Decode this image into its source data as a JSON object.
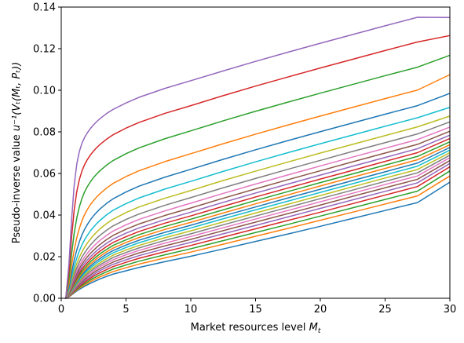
{
  "chart_data": {
    "type": "line",
    "title": "",
    "xlabel": "Market resources level",
    "xlabel_symbol": "M",
    "xlabel_subscript": "t",
    "ylabel": "Pseudo-inverse value",
    "ylabel_formula": "u⁻¹(Vₜ(Mₜ, Pₜ))",
    "xlim": [
      0,
      30
    ],
    "ylim": [
      0,
      0.14
    ],
    "xticks": [
      "0",
      "5",
      "10",
      "15",
      "20",
      "25",
      "30"
    ],
    "yticks": [
      "0.00",
      "0.02",
      "0.04",
      "0.06",
      "0.08",
      "0.10",
      "0.12",
      "0.14"
    ],
    "grid": false,
    "legend": "none",
    "color_cycle": [
      "#1f77b4",
      "#ff7f0e",
      "#2ca02c",
      "#d62728",
      "#9467bd",
      "#8c564b",
      "#e377c2",
      "#7f7f7f",
      "#bcbd22",
      "#17becf"
    ],
    "x": [
      0.35,
      0.6,
      0.8,
      1.0,
      1.2,
      1.4,
      1.6,
      1.8,
      2.0,
      2.25,
      2.5,
      2.75,
      3.0,
      3.5,
      4.0,
      5.0,
      6.0,
      8.0,
      10.0,
      12.5,
      15.0,
      17.5,
      20.0,
      22.5,
      25.0,
      27.5,
      30.0
    ],
    "series": [
      {
        "values": [
          0.0,
          0.0007,
          0.0016,
          0.0026,
          0.0035,
          0.0043,
          0.005,
          0.0057,
          0.0064,
          0.0072,
          0.0079,
          0.0086,
          0.0093,
          0.0105,
          0.0116,
          0.0132,
          0.0148,
          0.0176,
          0.0202,
          0.0237,
          0.0273,
          0.0309,
          0.0346,
          0.0384,
          0.0422,
          0.046,
          0.0558
        ]
      },
      {
        "values": [
          0.0,
          0.0008,
          0.0018,
          0.0029,
          0.0039,
          0.0048,
          0.0056,
          0.0064,
          0.0071,
          0.008,
          0.0088,
          0.0096,
          0.0103,
          0.0116,
          0.0128,
          0.0147,
          0.0164,
          0.0194,
          0.0222,
          0.026,
          0.0298,
          0.0336,
          0.0375,
          0.0414,
          0.0453,
          0.0492,
          0.0588
        ]
      },
      {
        "values": [
          0.0,
          0.0009,
          0.002,
          0.0032,
          0.0043,
          0.0053,
          0.0062,
          0.007,
          0.0078,
          0.0088,
          0.0097,
          0.0105,
          0.0113,
          0.0127,
          0.014,
          0.016,
          0.0178,
          0.0209,
          0.0238,
          0.0277,
          0.0316,
          0.0355,
          0.0395,
          0.0435,
          0.0475,
          0.0515,
          0.0612
        ]
      },
      {
        "values": [
          0.0,
          0.001,
          0.0022,
          0.0035,
          0.0047,
          0.0058,
          0.0068,
          0.0077,
          0.0086,
          0.0096,
          0.0106,
          0.0115,
          0.0123,
          0.0138,
          0.0152,
          0.0173,
          0.0192,
          0.0224,
          0.0254,
          0.0294,
          0.0334,
          0.0374,
          0.0414,
          0.0455,
          0.0496,
          0.0537,
          0.0632
        ]
      },
      {
        "values": [
          0.0,
          0.0011,
          0.0024,
          0.0038,
          0.0051,
          0.0063,
          0.0074,
          0.0084,
          0.0093,
          0.0104,
          0.0114,
          0.0124,
          0.0133,
          0.0149,
          0.0163,
          0.0185,
          0.0205,
          0.0238,
          0.0269,
          0.031,
          0.035,
          0.0391,
          0.0432,
          0.0473,
          0.0514,
          0.0555,
          0.0648
        ]
      },
      {
        "values": [
          0.0,
          0.0012,
          0.0026,
          0.0041,
          0.0055,
          0.0068,
          0.008,
          0.0091,
          0.0101,
          0.0112,
          0.0123,
          0.0133,
          0.0142,
          0.0159,
          0.0174,
          0.0197,
          0.0218,
          0.0252,
          0.0283,
          0.0325,
          0.0366,
          0.0407,
          0.0448,
          0.049,
          0.0531,
          0.0572,
          0.0662
        ]
      },
      {
        "values": [
          0.0,
          0.0013,
          0.0028,
          0.0044,
          0.006,
          0.0074,
          0.0086,
          0.0098,
          0.0108,
          0.012,
          0.0131,
          0.0142,
          0.0152,
          0.0169,
          0.0185,
          0.0209,
          0.023,
          0.0265,
          0.0297,
          0.0339,
          0.0381,
          0.0422,
          0.0464,
          0.0505,
          0.0547,
          0.0588,
          0.0676
        ]
      },
      {
        "values": [
          0.0,
          0.0014,
          0.003,
          0.0048,
          0.0064,
          0.0079,
          0.0093,
          0.0105,
          0.0116,
          0.0129,
          0.014,
          0.0151,
          0.0161,
          0.0179,
          0.0196,
          0.022,
          0.0242,
          0.0278,
          0.031,
          0.0353,
          0.0395,
          0.0437,
          0.0479,
          0.052,
          0.0562,
          0.0603,
          0.0688
        ]
      },
      {
        "values": [
          0.0,
          0.0015,
          0.0032,
          0.0051,
          0.0069,
          0.0085,
          0.0099,
          0.0112,
          0.0124,
          0.0137,
          0.0149,
          0.016,
          0.0171,
          0.019,
          0.0207,
          0.0232,
          0.0254,
          0.0291,
          0.0324,
          0.0367,
          0.041,
          0.0452,
          0.0494,
          0.0536,
          0.0578,
          0.0619,
          0.07
        ]
      },
      {
        "values": [
          0.0,
          0.0016,
          0.0035,
          0.0055,
          0.0074,
          0.0091,
          0.0106,
          0.012,
          0.0132,
          0.0146,
          0.0159,
          0.017,
          0.0181,
          0.0201,
          0.0218,
          0.0244,
          0.0267,
          0.0304,
          0.0338,
          0.0382,
          0.0425,
          0.0467,
          0.0509,
          0.0551,
          0.0593,
          0.0635,
          0.0712
        ]
      },
      {
        "values": [
          0.0,
          0.0017,
          0.0038,
          0.0059,
          0.0079,
          0.0097,
          0.0113,
          0.0127,
          0.014,
          0.0155,
          0.0168,
          0.018,
          0.0191,
          0.0212,
          0.0229,
          0.0256,
          0.0279,
          0.0317,
          0.0351,
          0.0396,
          0.0439,
          0.0482,
          0.0524,
          0.0566,
          0.0608,
          0.065,
          0.0725
        ]
      },
      {
        "values": [
          0.0,
          0.0018,
          0.0041,
          0.0064,
          0.0085,
          0.0104,
          0.0121,
          0.0136,
          0.0149,
          0.0165,
          0.0178,
          0.0191,
          0.0202,
          0.0223,
          0.0241,
          0.0268,
          0.0292,
          0.0331,
          0.0365,
          0.041,
          0.0454,
          0.0497,
          0.054,
          0.0582,
          0.0624,
          0.0666,
          0.0738
        ]
      },
      {
        "values": [
          0.0,
          0.002,
          0.0045,
          0.007,
          0.0092,
          0.0112,
          0.013,
          0.0145,
          0.0159,
          0.0175,
          0.0189,
          0.0202,
          0.0214,
          0.0235,
          0.0254,
          0.0281,
          0.0306,
          0.0345,
          0.038,
          0.0425,
          0.047,
          0.0513,
          0.0556,
          0.0598,
          0.064,
          0.0682,
          0.0752
        ]
      },
      {
        "values": [
          0.0,
          0.0022,
          0.0049,
          0.0076,
          0.01,
          0.0121,
          0.014,
          0.0156,
          0.017,
          0.0187,
          0.0201,
          0.0215,
          0.0227,
          0.0249,
          0.0268,
          0.0296,
          0.0321,
          0.0361,
          0.0396,
          0.0442,
          0.0487,
          0.053,
          0.0573,
          0.0615,
          0.0658,
          0.07,
          0.0768
        ]
      },
      {
        "values": [
          0.0,
          0.0024,
          0.0054,
          0.0083,
          0.0109,
          0.0131,
          0.0151,
          0.0168,
          0.0183,
          0.02,
          0.0215,
          0.0229,
          0.0242,
          0.0264,
          0.0284,
          0.0313,
          0.0338,
          0.0378,
          0.0414,
          0.0461,
          0.0506,
          0.0549,
          0.0592,
          0.0635,
          0.0677,
          0.0719,
          0.0784
        ]
      },
      {
        "values": [
          0.0,
          0.0027,
          0.006,
          0.0091,
          0.0119,
          0.0143,
          0.0164,
          0.0182,
          0.0198,
          0.0216,
          0.0231,
          0.0246,
          0.0259,
          0.0282,
          0.0302,
          0.0332,
          0.0357,
          0.0398,
          0.0434,
          0.0481,
          0.0526,
          0.057,
          0.0613,
          0.0656,
          0.0698,
          0.074,
          0.0803
        ]
      },
      {
        "values": [
          0.0,
          0.003,
          0.0067,
          0.0101,
          0.0131,
          0.0157,
          0.0179,
          0.0198,
          0.0215,
          0.0234,
          0.025,
          0.0265,
          0.0279,
          0.0302,
          0.0323,
          0.0353,
          0.0379,
          0.042,
          0.0457,
          0.0504,
          0.0549,
          0.0593,
          0.0636,
          0.0679,
          0.0721,
          0.0763,
          0.0823
        ]
      },
      {
        "values": [
          0.0,
          0.0034,
          0.0075,
          0.0113,
          0.0146,
          0.0174,
          0.0198,
          0.0218,
          0.0236,
          0.0256,
          0.0273,
          0.0289,
          0.0303,
          0.0327,
          0.0348,
          0.0379,
          0.0405,
          0.0447,
          0.0484,
          0.0531,
          0.0576,
          0.062,
          0.0663,
          0.0706,
          0.0748,
          0.079,
          0.0848
        ]
      },
      {
        "values": [
          0.0,
          0.0039,
          0.0086,
          0.0129,
          0.0166,
          0.0197,
          0.0223,
          0.0245,
          0.0264,
          0.0285,
          0.0303,
          0.0319,
          0.0334,
          0.0359,
          0.038,
          0.0412,
          0.0439,
          0.0481,
          0.0518,
          0.0566,
          0.0611,
          0.0655,
          0.0698,
          0.074,
          0.0782,
          0.0824,
          0.0876
        ]
      },
      {
        "values": [
          0.0,
          0.0046,
          0.0101,
          0.0151,
          0.0193,
          0.0228,
          0.0257,
          0.0281,
          0.0301,
          0.0324,
          0.0343,
          0.036,
          0.0375,
          0.0401,
          0.0423,
          0.0455,
          0.0482,
          0.0525,
          0.0562,
          0.061,
          0.0656,
          0.07,
          0.0743,
          0.0785,
          0.0827,
          0.0868,
          0.0918
        ]
      },
      {
        "values": [
          0.0,
          0.0056,
          0.0123,
          0.0183,
          0.0232,
          0.0272,
          0.0305,
          0.0331,
          0.0353,
          0.0377,
          0.0397,
          0.0414,
          0.043,
          0.0456,
          0.0478,
          0.0511,
          0.0539,
          0.0582,
          0.062,
          0.0668,
          0.0714,
          0.0758,
          0.0801,
          0.0843,
          0.0885,
          0.0926,
          0.0985
        ]
      },
      {
        "values": [
          0.0,
          0.0071,
          0.0157,
          0.0232,
          0.0291,
          0.0337,
          0.0373,
          0.0402,
          0.0425,
          0.045,
          0.047,
          0.0488,
          0.0503,
          0.053,
          0.0552,
          0.0585,
          0.0613,
          0.0657,
          0.0695,
          0.0743,
          0.0789,
          0.0833,
          0.0876,
          0.0918,
          0.096,
          0.1001,
          0.1075
        ]
      },
      {
        "values": [
          0.0,
          0.0096,
          0.0213,
          0.0313,
          0.0386,
          0.044,
          0.048,
          0.0511,
          0.0535,
          0.056,
          0.0581,
          0.0598,
          0.0614,
          0.064,
          0.0662,
          0.0695,
          0.0723,
          0.0767,
          0.0805,
          0.0853,
          0.0899,
          0.0943,
          0.0986,
          0.1028,
          0.107,
          0.1111,
          0.1168
        ]
      },
      {
        "values": [
          0.0,
          0.0132,
          0.0293,
          0.0425,
          0.0513,
          0.0571,
          0.0612,
          0.0642,
          0.0665,
          0.0689,
          0.0708,
          0.0725,
          0.074,
          0.0765,
          0.0786,
          0.0818,
          0.0845,
          0.0889,
          0.0926,
          0.0974,
          0.102,
          0.1064,
          0.1107,
          0.1149,
          0.1191,
          0.1232,
          0.1263
        ]
      },
      {
        "values": [
          0.0,
          0.0169,
          0.0377,
          0.0543,
          0.0645,
          0.0706,
          0.0745,
          0.0773,
          0.0794,
          0.0816,
          0.0834,
          0.085,
          0.0864,
          0.0888,
          0.0908,
          0.0939,
          0.0966,
          0.1009,
          0.1046,
          0.1093,
          0.1139,
          0.1183,
          0.1226,
          0.1268,
          0.131,
          0.1351,
          0.135
        ]
      }
    ]
  }
}
